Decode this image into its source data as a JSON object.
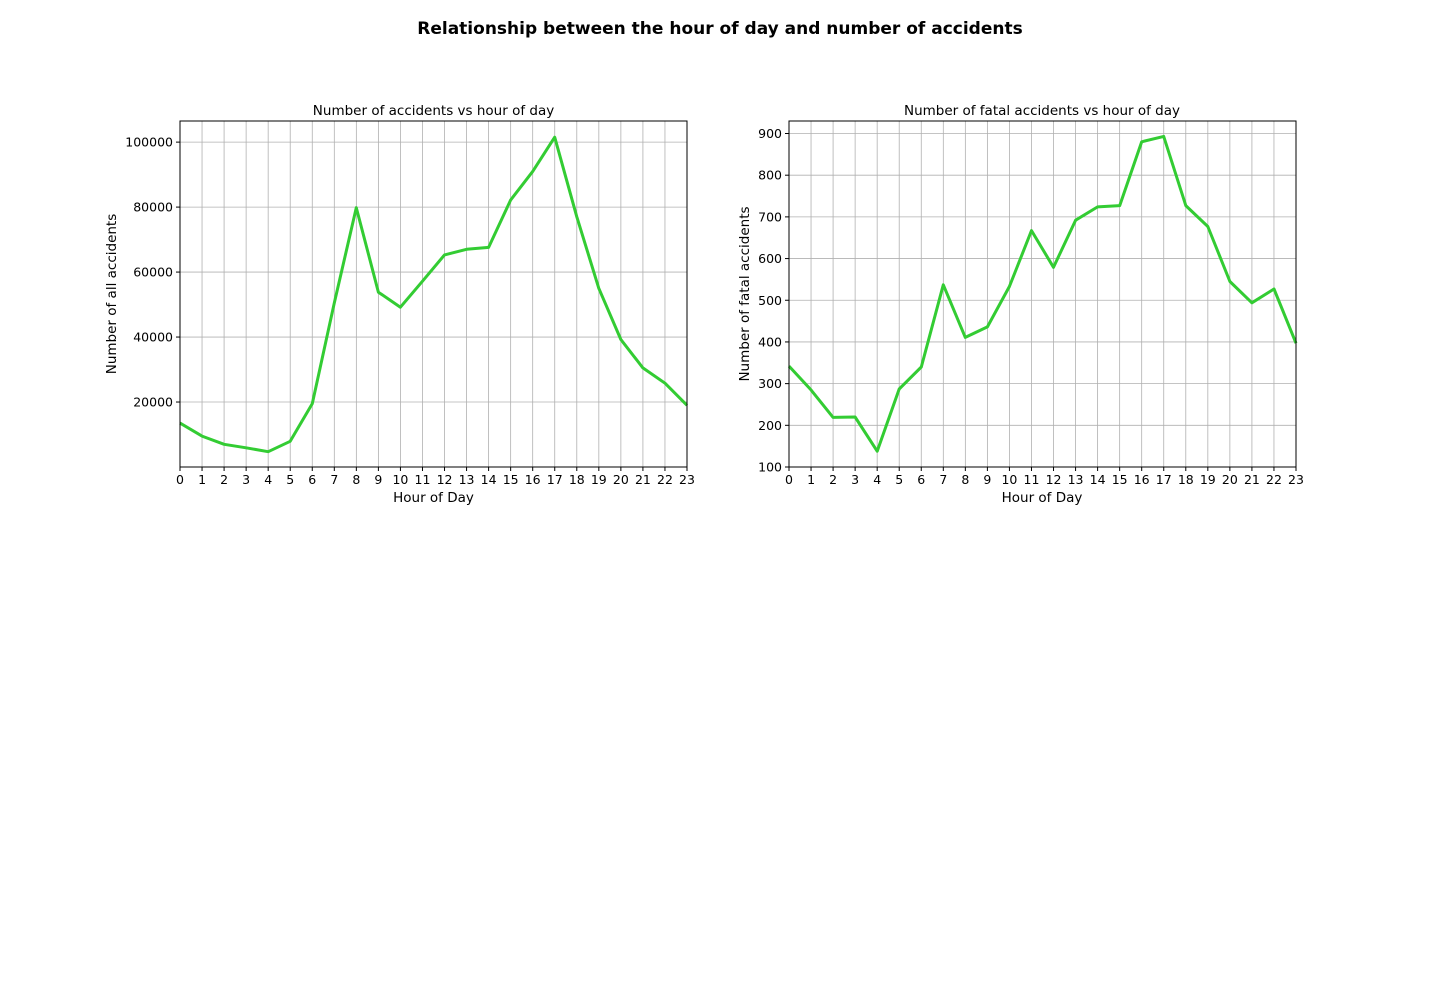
{
  "figure": {
    "suptitle": "Relationship between the hour of day and number of accidents"
  },
  "colors": {
    "line": "#33cc33",
    "grid": "#b0b0b0"
  },
  "chart_data": [
    {
      "type": "line",
      "title": "Number of accidents vs hour of day",
      "xlabel": "Hour of Day",
      "ylabel": "Number of all accidents",
      "xlim": [
        0,
        23
      ],
      "ylim": [
        0,
        106500
      ],
      "grid": true,
      "x": [
        0,
        1,
        2,
        3,
        4,
        5,
        6,
        7,
        8,
        9,
        10,
        11,
        12,
        13,
        14,
        15,
        16,
        17,
        18,
        19,
        20,
        21,
        22,
        23
      ],
      "xticks": [
        0,
        1,
        2,
        3,
        4,
        5,
        6,
        7,
        8,
        9,
        10,
        11,
        12,
        13,
        14,
        15,
        16,
        17,
        18,
        19,
        20,
        21,
        22,
        23
      ],
      "yticks": [
        20000,
        40000,
        60000,
        80000,
        100000
      ],
      "series": [
        {
          "values": [
            13500,
            9500,
            7000,
            5900,
            4700,
            7900,
            19500,
            50500,
            79800,
            53800,
            49200,
            57200,
            65300,
            67000,
            67600,
            82200,
            91000,
            101500,
            77000,
            55000,
            39200,
            30500,
            25800,
            19000
          ]
        }
      ]
    },
    {
      "type": "line",
      "title": "Number of fatal accidents vs hour of day",
      "xlabel": "Hour of Day",
      "ylabel": "Number of fatal accidents",
      "xlim": [
        0,
        23
      ],
      "ylim": [
        100,
        930
      ],
      "grid": true,
      "x": [
        0,
        1,
        2,
        3,
        4,
        5,
        6,
        7,
        8,
        9,
        10,
        11,
        12,
        13,
        14,
        15,
        16,
        17,
        18,
        19,
        20,
        21,
        22,
        23
      ],
      "xticks": [
        0,
        1,
        2,
        3,
        4,
        5,
        6,
        7,
        8,
        9,
        10,
        11,
        12,
        13,
        14,
        15,
        16,
        17,
        18,
        19,
        20,
        21,
        22,
        23
      ],
      "yticks": [
        100,
        200,
        300,
        400,
        500,
        600,
        700,
        800,
        900
      ],
      "series": [
        {
          "values": [
            342,
            285,
            219,
            220,
            138,
            287,
            340,
            537,
            411,
            436,
            533,
            667,
            579,
            692,
            724,
            727,
            880,
            893,
            727,
            677,
            545,
            494,
            527,
            397
          ]
        }
      ]
    }
  ]
}
